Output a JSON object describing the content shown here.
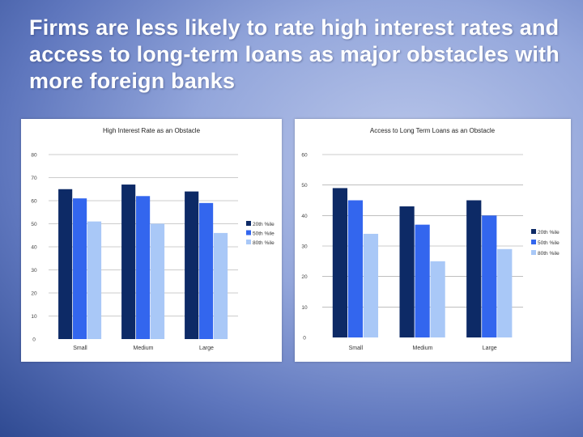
{
  "slide": {
    "title": "Firms are less likely to rate high interest rates and access to long-term loans as major obstacles with more foreign banks"
  },
  "colors": {
    "series": [
      "#0d2a66",
      "#3366ee",
      "#a9c8f7"
    ]
  },
  "chart_data": [
    {
      "type": "bar",
      "title": "High Interest Rate as an Obstacle",
      "categories": [
        "Small",
        "Medium",
        "Large"
      ],
      "series": [
        {
          "name": "20th %ile",
          "values": [
            65,
            67,
            64
          ]
        },
        {
          "name": "50th %ile",
          "values": [
            61,
            62,
            59
          ]
        },
        {
          "name": "80th %ile",
          "values": [
            51,
            50,
            46
          ]
        }
      ],
      "ylim": [
        0,
        80
      ],
      "yticks": [
        0,
        10,
        20,
        30,
        40,
        50,
        60,
        70,
        80
      ],
      "ytick_labels": [
        "0",
        "10",
        "20",
        "30",
        "40",
        "50",
        "60",
        "70",
        "80"
      ],
      "grid": true,
      "legend": "right"
    },
    {
      "type": "bar",
      "title": "Access to Long Term Loans as an Obstacle",
      "categories": [
        "Small",
        "Medium",
        "Large"
      ],
      "series": [
        {
          "name": "20th %ile",
          "values": [
            49,
            43,
            45
          ]
        },
        {
          "name": "50th %ile",
          "values": [
            45,
            37,
            40
          ]
        },
        {
          "name": "80th %ile",
          "values": [
            34,
            25,
            29
          ]
        }
      ],
      "ylim": [
        0,
        60
      ],
      "yticks": [
        0,
        10,
        20,
        30,
        40,
        50,
        60
      ],
      "ytick_labels": [
        "0",
        "10",
        "20",
        "30",
        "40",
        "50",
        "60"
      ],
      "grid": true,
      "legend": "right"
    }
  ]
}
